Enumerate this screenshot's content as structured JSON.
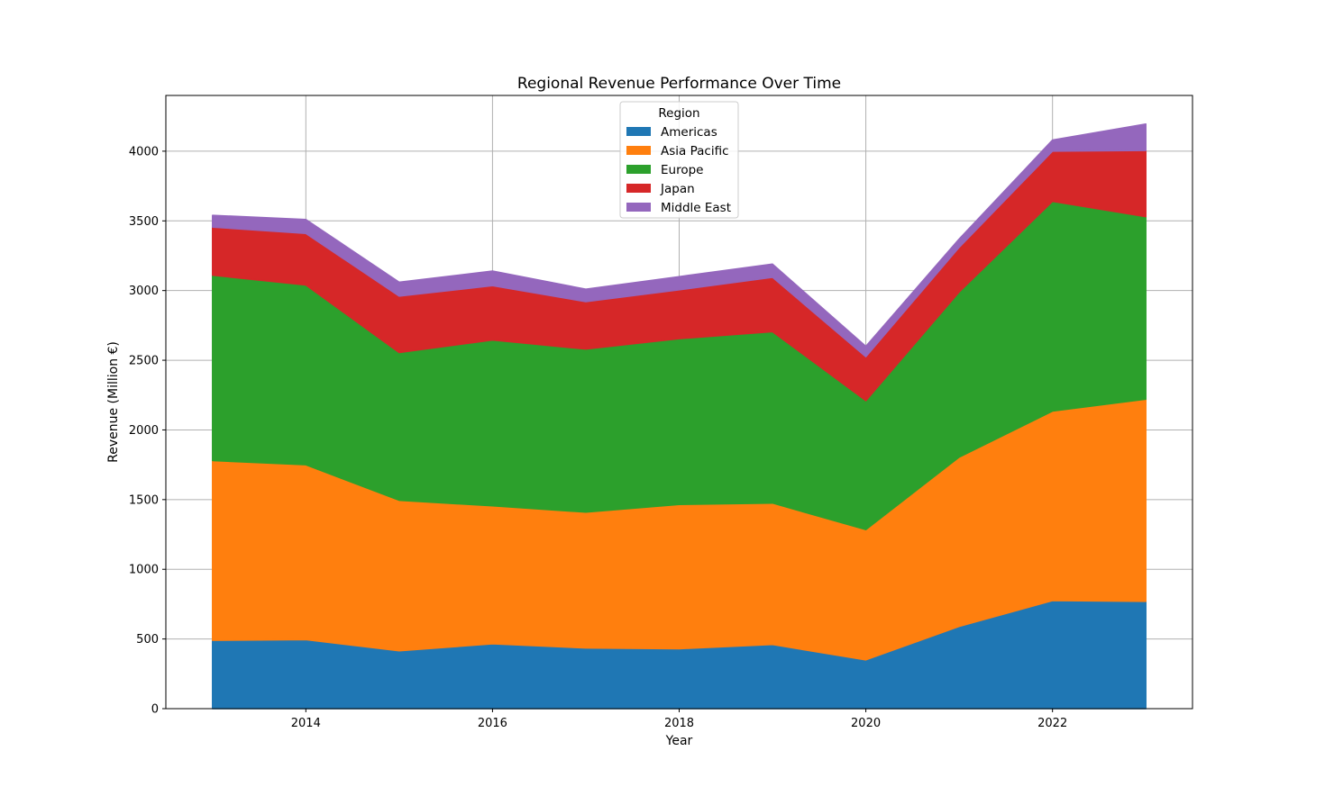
{
  "chart_data": {
    "type": "area",
    "stacked": true,
    "title": "Regional Revenue Performance Over Time",
    "xlabel": "Year",
    "ylabel": "Revenue (Million €)",
    "x": [
      2013,
      2014,
      2015,
      2016,
      2017,
      2018,
      2019,
      2020,
      2021,
      2022,
      2023
    ],
    "xlim": [
      2012.5,
      2023.5
    ],
    "ylim": [
      0,
      4400
    ],
    "xticks": [
      2014,
      2016,
      2018,
      2020,
      2022
    ],
    "yticks": [
      0,
      500,
      1000,
      1500,
      2000,
      2500,
      3000,
      3500,
      4000
    ],
    "grid": true,
    "legend": {
      "title": "Region",
      "placement": "top-center"
    },
    "series": [
      {
        "name": "Americas",
        "color": "#1f77b4",
        "values": [
          490,
          495,
          415,
          465,
          435,
          430,
          460,
          350,
          590,
          775,
          770
        ]
      },
      {
        "name": "Asia Pacific",
        "color": "#ff7f0e",
        "values": [
          1290,
          1255,
          1080,
          990,
          975,
          1035,
          1015,
          935,
          1215,
          1360,
          1450
        ]
      },
      {
        "name": "Europe",
        "color": "#2ca02c",
        "values": [
          1330,
          1290,
          1060,
          1190,
          1170,
          1190,
          1230,
          925,
          1185,
          1505,
          1310
        ]
      },
      {
        "name": "Japan",
        "color": "#d62728",
        "values": [
          345,
          370,
          405,
          390,
          340,
          350,
          390,
          315,
          320,
          360,
          475
        ]
      },
      {
        "name": "Middle East",
        "color": "#9467bd",
        "values": [
          85,
          100,
          100,
          105,
          90,
          95,
          95,
          75,
          60,
          80,
          190
        ]
      }
    ]
  }
}
